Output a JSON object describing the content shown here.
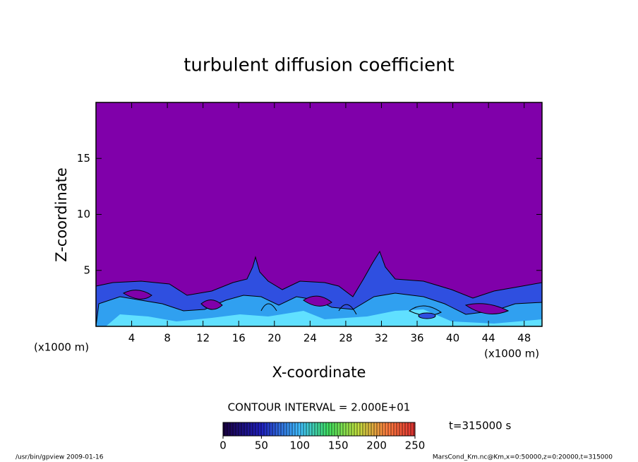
{
  "chart_data": {
    "type": "contour",
    "title": "turbulent diffusion coefficient",
    "x_label": "X-coordinate",
    "y_label": "Z-coordinate",
    "x_unit": "(x1000 m)",
    "xlim": [
      0,
      50
    ],
    "xticks": [
      4,
      8,
      12,
      16,
      20,
      24,
      28,
      32,
      36,
      40,
      44,
      48
    ],
    "ylim": [
      0,
      20
    ],
    "yticks": [
      5,
      10,
      15
    ],
    "contour_interval": "CONTOUR INTERVAL = 2.000E+01",
    "colorbar": {
      "lim": [
        0,
        250
      ],
      "ticks": [
        0,
        50,
        100,
        150,
        200,
        250
      ]
    },
    "time_label": "t=315000 s",
    "footer_left": "/usr/bin/gpview  2009-01-16",
    "footer_right": "MarsCond_Km.nc@Km,x=0:50000,z=0:20000,t=315000"
  }
}
